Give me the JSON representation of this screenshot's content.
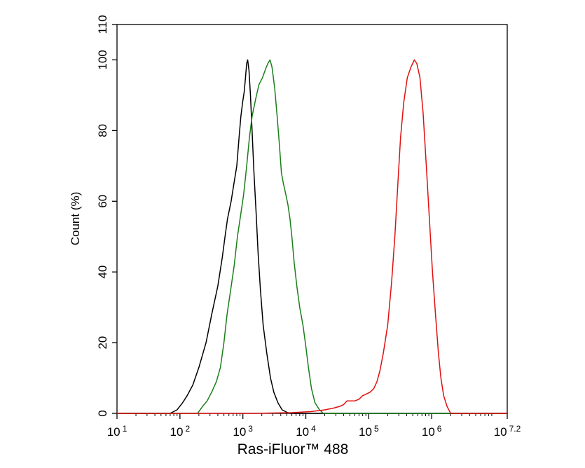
{
  "chart_data": {
    "type": "line",
    "title": "",
    "xlabel": "Ras-iFluor™ 488",
    "ylabel": "Count  (%)",
    "x_scale": "log10",
    "xlim": [
      10,
      15848931.92
    ],
    "ylim": [
      0,
      110
    ],
    "x_ticks": [
      {
        "value": 10,
        "base": "10",
        "exp": "1"
      },
      {
        "value": 100,
        "base": "10",
        "exp": "2"
      },
      {
        "value": 1000,
        "base": "10",
        "exp": "3"
      },
      {
        "value": 10000,
        "base": "10",
        "exp": "4"
      },
      {
        "value": 100000,
        "base": "10",
        "exp": "5"
      },
      {
        "value": 1000000,
        "base": "10",
        "exp": "6"
      },
      {
        "value": 15848931.92,
        "base": "10",
        "exp": "7.2"
      }
    ],
    "y_ticks": [
      {
        "value": 0,
        "label": "0"
      },
      {
        "value": 20,
        "label": "20"
      },
      {
        "value": 40,
        "label": "40"
      },
      {
        "value": 60,
        "label": "60"
      },
      {
        "value": 80,
        "label": "80"
      },
      {
        "value": 100,
        "label": "100"
      },
      {
        "value": 110,
        "label": "110"
      }
    ],
    "grid": false,
    "legend": "none",
    "series": [
      {
        "color": "#000000",
        "points": [
          [
            70,
            0
          ],
          [
            90,
            1
          ],
          [
            110,
            3
          ],
          [
            130,
            5
          ],
          [
            160,
            8
          ],
          [
            200,
            13
          ],
          [
            260,
            20
          ],
          [
            320,
            28
          ],
          [
            400,
            36
          ],
          [
            470,
            44
          ],
          [
            520,
            50
          ],
          [
            570,
            55
          ],
          [
            650,
            60
          ],
          [
            720,
            65
          ],
          [
            800,
            70
          ],
          [
            870,
            78
          ],
          [
            930,
            84
          ],
          [
            990,
            88
          ],
          [
            1050,
            91
          ],
          [
            1100,
            95
          ],
          [
            1150,
            99
          ],
          [
            1190,
            100
          ],
          [
            1250,
            97
          ],
          [
            1320,
            90
          ],
          [
            1400,
            80
          ],
          [
            1500,
            68
          ],
          [
            1620,
            57
          ],
          [
            1750,
            45
          ],
          [
            1900,
            35
          ],
          [
            2100,
            25
          ],
          [
            2400,
            17
          ],
          [
            2750,
            10
          ],
          [
            3100,
            6
          ],
          [
            3600,
            3
          ],
          [
            4200,
            1
          ],
          [
            5000,
            0.3
          ],
          [
            5600,
            0
          ]
        ]
      },
      {
        "color": "#1a7f1a",
        "points": [
          [
            190,
            0
          ],
          [
            230,
            2
          ],
          [
            270,
            3.5
          ],
          [
            320,
            6
          ],
          [
            380,
            9
          ],
          [
            440,
            13
          ],
          [
            500,
            20
          ],
          [
            560,
            28
          ],
          [
            640,
            35
          ],
          [
            730,
            42
          ],
          [
            820,
            50
          ],
          [
            920,
            56
          ],
          [
            1030,
            62
          ],
          [
            1150,
            70
          ],
          [
            1270,
            78
          ],
          [
            1400,
            84
          ],
          [
            1600,
            89
          ],
          [
            1800,
            93
          ],
          [
            2050,
            95
          ],
          [
            2300,
            97.5
          ],
          [
            2500,
            99
          ],
          [
            2700,
            100
          ],
          [
            2900,
            98
          ],
          [
            3200,
            92
          ],
          [
            3500,
            84
          ],
          [
            3800,
            76
          ],
          [
            4100,
            68
          ],
          [
            4400,
            65
          ],
          [
            4800,
            62
          ],
          [
            5200,
            59
          ],
          [
            5600,
            55
          ],
          [
            6000,
            50
          ],
          [
            6500,
            43
          ],
          [
            7200,
            36
          ],
          [
            8000,
            30
          ],
          [
            9000,
            25
          ],
          [
            10000,
            19
          ],
          [
            11000,
            13
          ],
          [
            12300,
            7
          ],
          [
            14000,
            3
          ],
          [
            16500,
            1
          ],
          [
            19000,
            0
          ]
        ]
      },
      {
        "color": "#e01010",
        "points": [
          [
            1500,
            0
          ],
          [
            6000,
            0.2
          ],
          [
            12000,
            0.5
          ],
          [
            20000,
            1
          ],
          [
            28000,
            1.5
          ],
          [
            35000,
            2
          ],
          [
            40000,
            2.5
          ],
          [
            45000,
            3.5
          ],
          [
            52000,
            3.5
          ],
          [
            60000,
            3.5
          ],
          [
            70000,
            4
          ],
          [
            80000,
            5
          ],
          [
            92000,
            5.5
          ],
          [
            105000,
            6
          ],
          [
            120000,
            7
          ],
          [
            135000,
            9
          ],
          [
            150000,
            12
          ],
          [
            170000,
            17
          ],
          [
            200000,
            25
          ],
          [
            230000,
            37
          ],
          [
            260000,
            50
          ],
          [
            290000,
            65
          ],
          [
            320000,
            78
          ],
          [
            360000,
            88
          ],
          [
            410000,
            95
          ],
          [
            470000,
            98
          ],
          [
            530000,
            100
          ],
          [
            580000,
            99
          ],
          [
            650000,
            95
          ],
          [
            730000,
            85
          ],
          [
            820000,
            70
          ],
          [
            920000,
            55
          ],
          [
            1030000,
            40
          ],
          [
            1150000,
            28
          ],
          [
            1280000,
            17
          ],
          [
            1400000,
            10
          ],
          [
            1550000,
            5
          ],
          [
            1750000,
            2
          ],
          [
            2000000,
            0
          ]
        ]
      }
    ]
  }
}
